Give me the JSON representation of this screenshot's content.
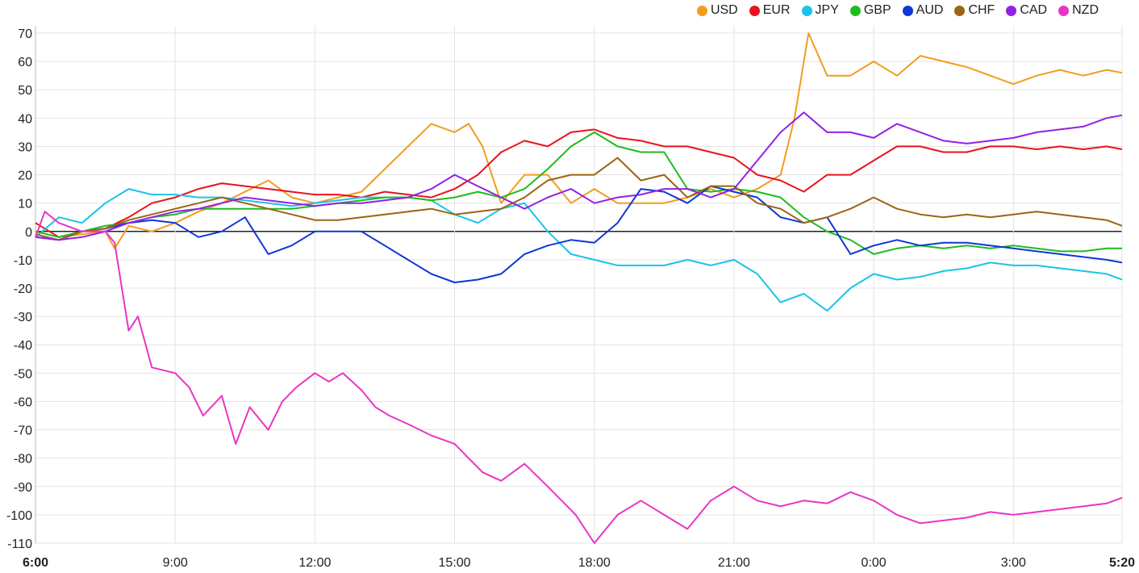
{
  "chart_data": {
    "type": "line",
    "title": "",
    "xlabel": "",
    "ylabel": "",
    "ylim": [
      -110,
      70
    ],
    "yticks": [
      70,
      60,
      50,
      40,
      30,
      20,
      10,
      0,
      -10,
      -20,
      -30,
      -40,
      -50,
      -60,
      -70,
      -80,
      -90,
      -100,
      -110
    ],
    "x_ticks": [
      {
        "label": "6:00",
        "hours": 0,
        "bold": true
      },
      {
        "label": "9:00",
        "hours": 3,
        "bold": false
      },
      {
        "label": "12:00",
        "hours": 6,
        "bold": false
      },
      {
        "label": "15:00",
        "hours": 9,
        "bold": false
      },
      {
        "label": "18:00",
        "hours": 12,
        "bold": false
      },
      {
        "label": "21:00",
        "hours": 15,
        "bold": false
      },
      {
        "label": "0:00",
        "hours": 18,
        "bold": false
      },
      {
        "label": "3:00",
        "hours": 21,
        "bold": false
      },
      {
        "label": "5:20",
        "hours": 23.333,
        "bold": true
      }
    ],
    "grid": true,
    "legend_position": "top-right",
    "series": [
      {
        "name": "USD",
        "color": "#f39c1e",
        "x": [
          0,
          0.5,
          1,
          1.5,
          1.7,
          2,
          2.5,
          3,
          3.5,
          4,
          4.5,
          5,
          5.5,
          6,
          6.5,
          7,
          7.5,
          8,
          8.5,
          9,
          9.3,
          9.6,
          10,
          10.5,
          11,
          11.5,
          12,
          12.5,
          13,
          13.5,
          14,
          14.5,
          15,
          15.5,
          16,
          16.3,
          16.6,
          17,
          17.5,
          18,
          18.5,
          19,
          19.5,
          20,
          20.5,
          21,
          21.5,
          22,
          22.5,
          23,
          23.333
        ],
        "y": [
          0,
          -2,
          -1,
          0,
          -6,
          2,
          0,
          3,
          7,
          10,
          14,
          18,
          12,
          10,
          12,
          14,
          22,
          30,
          38,
          35,
          38,
          30,
          10,
          20,
          20,
          10,
          15,
          10,
          10,
          10,
          12,
          15,
          12,
          15,
          20,
          40,
          70,
          55,
          55,
          60,
          55,
          62,
          60,
          58,
          55,
          52,
          55,
          57,
          55,
          57,
          56
        ]
      },
      {
        "name": "EUR",
        "color": "#e8131f",
        "x": [
          0,
          0.5,
          1,
          1.5,
          2,
          2.5,
          3,
          3.5,
          4,
          4.5,
          5,
          5.5,
          6,
          6.5,
          7,
          7.5,
          8,
          8.5,
          9,
          9.5,
          10,
          10.5,
          11,
          11.5,
          12,
          12.5,
          13,
          13.5,
          14,
          14.5,
          15,
          15.5,
          16,
          16.5,
          17,
          17.5,
          18,
          18.5,
          19,
          19.5,
          20,
          20.5,
          21,
          21.5,
          22,
          22.5,
          23,
          23.333
        ],
        "y": [
          3,
          -2,
          0,
          1,
          5,
          10,
          12,
          15,
          17,
          16,
          15,
          14,
          13,
          13,
          12,
          14,
          13,
          12,
          15,
          20,
          28,
          32,
          30,
          35,
          36,
          33,
          32,
          30,
          30,
          28,
          26,
          20,
          18,
          14,
          20,
          20,
          25,
          30,
          30,
          28,
          28,
          30,
          30,
          29,
          30,
          29,
          30,
          29
        ]
      },
      {
        "name": "JPY",
        "color": "#1bc3e9",
        "x": [
          0,
          0.5,
          1,
          1.5,
          2,
          2.5,
          3,
          3.5,
          4,
          4.5,
          5,
          5.5,
          6,
          6.5,
          7,
          7.5,
          8,
          8.5,
          9,
          9.5,
          10,
          10.5,
          11,
          11.5,
          12,
          12.5,
          13,
          13.5,
          14,
          14.5,
          15,
          15.5,
          16,
          16.5,
          17,
          17.5,
          18,
          18.5,
          19,
          19.5,
          20,
          20.5,
          21,
          21.5,
          22,
          22.5,
          23,
          23.333
        ],
        "y": [
          -2,
          5,
          3,
          10,
          15,
          13,
          13,
          12,
          12,
          11,
          10,
          9,
          10,
          11,
          12,
          12,
          12,
          11,
          6,
          3,
          8,
          10,
          0,
          -8,
          -10,
          -12,
          -12,
          -12,
          -10,
          -12,
          -10,
          -15,
          -25,
          -22,
          -28,
          -20,
          -15,
          -17,
          -16,
          -14,
          -13,
          -11,
          -12,
          -12,
          -13,
          -14,
          -15,
          -17
        ]
      },
      {
        "name": "GBP",
        "color": "#1ebc1e",
        "x": [
          0,
          0.5,
          1,
          1.5,
          2,
          2.5,
          3,
          3.5,
          4,
          4.5,
          5,
          5.5,
          6,
          6.5,
          7,
          7.5,
          8,
          8.5,
          9,
          9.5,
          10,
          10.5,
          11,
          11.5,
          12,
          12.5,
          13,
          13.5,
          14,
          14.5,
          15,
          15.5,
          16,
          16.5,
          17,
          17.5,
          18,
          18.5,
          19,
          19.5,
          20,
          20.5,
          21,
          21.5,
          22,
          22.5,
          23,
          23.333
        ],
        "y": [
          0,
          -2,
          0,
          2,
          3,
          5,
          6,
          8,
          8,
          8,
          8,
          8,
          9,
          10,
          11,
          12,
          12,
          11,
          12,
          14,
          12,
          15,
          22,
          30,
          35,
          30,
          28,
          28,
          15,
          14,
          15,
          14,
          12,
          5,
          0,
          -3,
          -8,
          -6,
          -5,
          -6,
          -5,
          -6,
          -5,
          -6,
          -7,
          -7,
          -6,
          -6
        ]
      },
      {
        "name": "AUD",
        "color": "#1036d4",
        "x": [
          0,
          0.5,
          1,
          1.5,
          2,
          2.5,
          3,
          3.5,
          4,
          4.5,
          5,
          5.5,
          6,
          6.5,
          7,
          7.5,
          8,
          8.5,
          9,
          9.5,
          10,
          10.5,
          11,
          11.5,
          12,
          12.5,
          13,
          13.5,
          14,
          14.5,
          15,
          15.5,
          16,
          16.5,
          17,
          17.5,
          18,
          18.5,
          19,
          19.5,
          20,
          20.5,
          21,
          21.5,
          22,
          22.5,
          23,
          23.333
        ],
        "y": [
          -2,
          -3,
          0,
          1,
          3,
          4,
          3,
          -2,
          0,
          5,
          -8,
          -5,
          0,
          0,
          0,
          -5,
          -10,
          -15,
          -18,
          -17,
          -15,
          -8,
          -5,
          -3,
          -4,
          3,
          15,
          14,
          10,
          16,
          14,
          12,
          5,
          3,
          5,
          -8,
          -5,
          -3,
          -5,
          -4,
          -4,
          -5,
          -6,
          -7,
          -8,
          -9,
          -10,
          -11
        ]
      },
      {
        "name": "CHF",
        "color": "#9a6512",
        "x": [
          0,
          0.5,
          1,
          1.5,
          2,
          2.5,
          3,
          3.5,
          4,
          4.5,
          5,
          5.5,
          6,
          6.5,
          7,
          7.5,
          8,
          8.5,
          9,
          9.5,
          10,
          10.5,
          11,
          11.5,
          12,
          12.5,
          13,
          13.5,
          14,
          14.5,
          15,
          15.5,
          16,
          16.5,
          17,
          17.5,
          18,
          18.5,
          19,
          19.5,
          20,
          20.5,
          21,
          21.5,
          22,
          22.5,
          23,
          23.333
        ],
        "y": [
          -1,
          -3,
          0,
          1,
          4,
          6,
          8,
          10,
          12,
          10,
          8,
          6,
          4,
          4,
          5,
          6,
          7,
          8,
          6,
          7,
          8,
          12,
          18,
          20,
          20,
          26,
          18,
          20,
          12,
          16,
          16,
          10,
          8,
          3,
          5,
          8,
          12,
          8,
          6,
          5,
          6,
          5,
          6,
          7,
          6,
          5,
          4,
          2
        ]
      },
      {
        "name": "CAD",
        "color": "#9221e6",
        "x": [
          0,
          0.5,
          1,
          1.5,
          2,
          2.5,
          3,
          3.5,
          4,
          4.5,
          5,
          5.5,
          6,
          6.5,
          7,
          7.5,
          8,
          8.5,
          9,
          9.5,
          10,
          10.5,
          11,
          11.5,
          12,
          12.5,
          13,
          13.5,
          14,
          14.5,
          15,
          15.5,
          16,
          16.5,
          17,
          17.5,
          18,
          18.5,
          19,
          19.5,
          20,
          20.5,
          21,
          21.5,
          22,
          22.5,
          23,
          23.333
        ],
        "y": [
          -2,
          -3,
          -2,
          0,
          3,
          5,
          7,
          8,
          10,
          12,
          11,
          10,
          9,
          10,
          10,
          11,
          12,
          15,
          20,
          16,
          12,
          8,
          12,
          15,
          10,
          12,
          13,
          15,
          15,
          12,
          15,
          25,
          35,
          42,
          35,
          35,
          33,
          38,
          35,
          32,
          31,
          32,
          33,
          35,
          36,
          37,
          40,
          41
        ]
      },
      {
        "name": "NZD",
        "color": "#ea34c4",
        "x": [
          0,
          0.2,
          0.5,
          1,
          1.5,
          1.7,
          2,
          2.2,
          2.5,
          3,
          3.3,
          3.6,
          4,
          4.3,
          4.6,
          5,
          5.3,
          5.6,
          6,
          6.3,
          6.6,
          7,
          7.3,
          7.6,
          8,
          8.5,
          9,
          9.3,
          9.6,
          10,
          10.5,
          11,
          11.3,
          11.6,
          12,
          12.5,
          13,
          13.5,
          14,
          14.5,
          15,
          15.5,
          16,
          16.5,
          17,
          17.5,
          18,
          18.5,
          19,
          19.5,
          20,
          20.5,
          21,
          21.5,
          22,
          22.5,
          23,
          23.333
        ],
        "y": [
          -2,
          7,
          3,
          0,
          0,
          -4,
          -35,
          -30,
          -48,
          -50,
          -55,
          -65,
          -58,
          -75,
          -62,
          -70,
          -60,
          -55,
          -50,
          -53,
          -50,
          -56,
          -62,
          -65,
          -68,
          -72,
          -75,
          -80,
          -85,
          -88,
          -82,
          -90,
          -95,
          -100,
          -110,
          -100,
          -95,
          -100,
          -105,
          -95,
          -90,
          -95,
          -97,
          -95,
          -96,
          -92,
          -95,
          -100,
          -103,
          -102,
          -101,
          -99,
          -100,
          -99,
          -98,
          -97,
          -96,
          -94
        ]
      }
    ]
  }
}
